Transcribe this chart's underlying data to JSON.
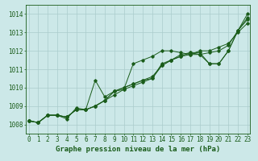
{
  "title": "Graphe pression niveau de la mer (hPa)",
  "hours": [
    0,
    1,
    2,
    3,
    4,
    5,
    6,
    7,
    8,
    9,
    10,
    11,
    12,
    13,
    14,
    15,
    16,
    17,
    18,
    19,
    20,
    21,
    22,
    23
  ],
  "ylim": [
    1007.5,
    1014.5
  ],
  "xlim": [
    -0.3,
    23.3
  ],
  "yticks": [
    1008,
    1009,
    1010,
    1011,
    1012,
    1013,
    1014
  ],
  "bg_color": "#cce8e8",
  "grid_color": "#aacccc",
  "line_color": "#1a5c1a",
  "line1": [
    1008.2,
    1008.1,
    1008.5,
    1008.5,
    1008.4,
    1008.8,
    1008.8,
    1009.0,
    1009.3,
    1009.8,
    1010.0,
    1010.2,
    1010.4,
    1010.5,
    1011.3,
    1011.5,
    1011.7,
    1011.8,
    1012.0,
    1012.0,
    1012.2,
    1012.4,
    1013.0,
    1013.5
  ],
  "line2": [
    1008.2,
    1008.1,
    1008.5,
    1008.5,
    1008.4,
    1008.8,
    1008.8,
    1010.4,
    1009.5,
    1009.8,
    1009.9,
    1011.3,
    1011.5,
    1011.7,
    1012.0,
    1012.0,
    1011.9,
    1011.8,
    1011.8,
    1011.9,
    1012.0,
    1012.3,
    1013.1,
    1013.8
  ],
  "line3": [
    1008.2,
    1008.1,
    1008.5,
    1008.5,
    1008.3,
    1008.9,
    1008.8,
    1009.0,
    1009.3,
    1009.6,
    1009.9,
    1010.1,
    1010.3,
    1010.5,
    1011.2,
    1011.5,
    1011.8,
    1011.9,
    1011.8,
    1011.3,
    1011.3,
    1012.0,
    1013.1,
    1014.0
  ],
  "line4": [
    1008.2,
    1008.1,
    1008.5,
    1008.5,
    1008.4,
    1008.8,
    1008.8,
    1009.0,
    1009.3,
    1009.8,
    1010.0,
    1010.2,
    1010.4,
    1010.6,
    1011.2,
    1011.5,
    1011.7,
    1011.9,
    1011.9,
    1011.3,
    1011.3,
    1012.0,
    1013.1,
    1013.7
  ],
  "figsize": [
    3.2,
    2.0
  ],
  "dpi": 100,
  "tick_fontsize": 5.5,
  "xlabel_fontsize": 6.5
}
